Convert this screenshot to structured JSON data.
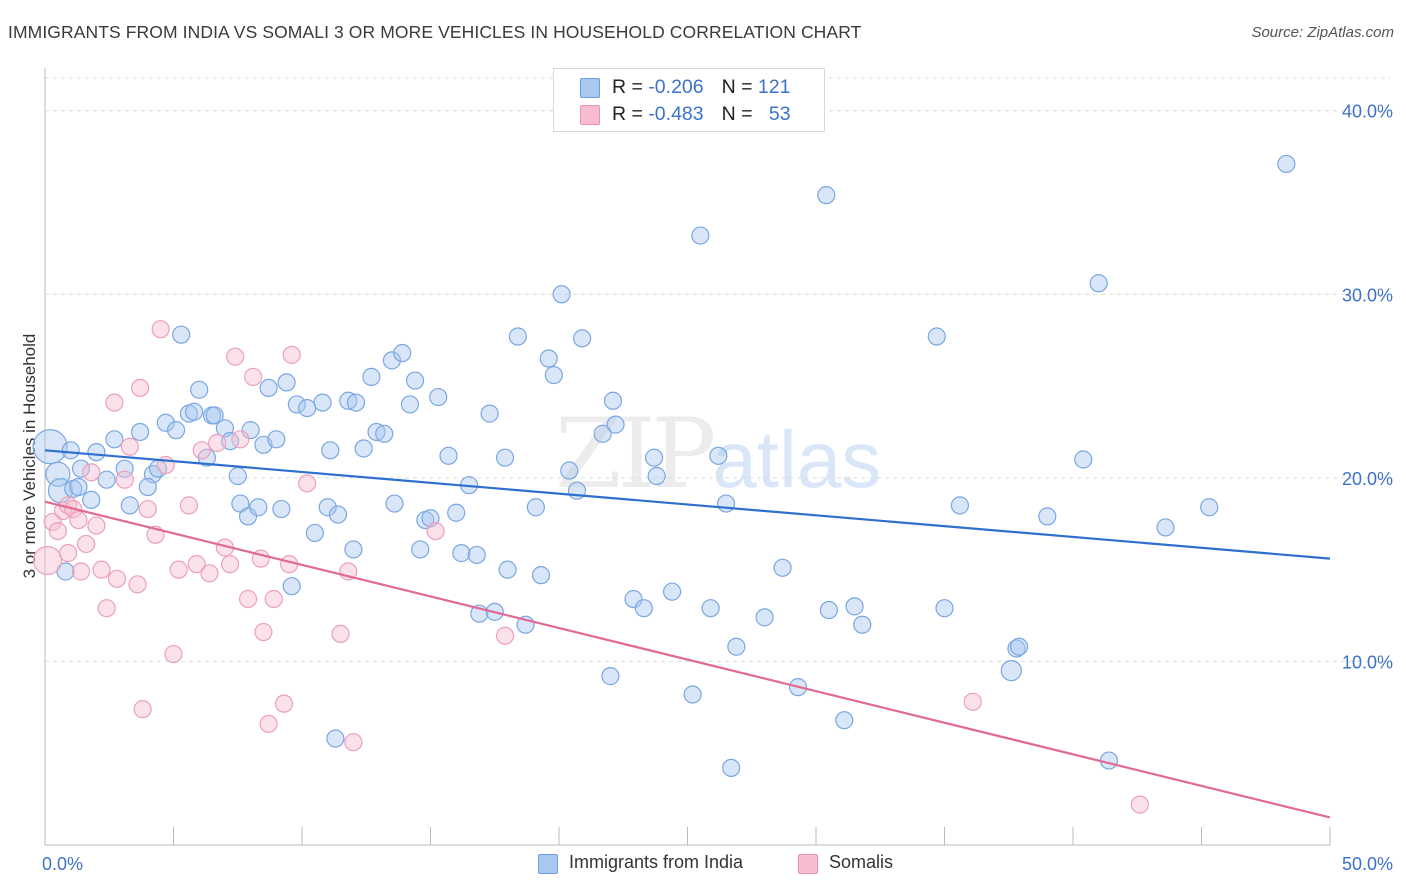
{
  "title": "IMMIGRANTS FROM INDIA VS SOMALI 3 OR MORE VEHICLES IN HOUSEHOLD CORRELATION CHART",
  "source": "Source: ZipAtlas.com",
  "watermark": {
    "zip": "ZIP",
    "atlas": "atlas"
  },
  "legend": {
    "rows": [
      {
        "r_label": "R = ",
        "r_value": "-0.206",
        "n_label": "N = ",
        "n_value": "121",
        "color": "#a9c8f0",
        "border": "#6d9ee0"
      },
      {
        "r_label": "R = ",
        "r_value": "-0.483",
        "n_label": "N = ",
        "n_value": "53",
        "color": "#f7bcd0",
        "border": "#e893b0"
      }
    ]
  },
  "bottom_legend": [
    {
      "label": "Immigrants from India",
      "color": "#a9c8f0",
      "border": "#6d9ee0"
    },
    {
      "label": "Somalis",
      "color": "#f7bcd0",
      "border": "#e893b0"
    }
  ],
  "chart_data": {
    "type": "scatter",
    "title": "IMMIGRANTS FROM INDIA VS SOMALI 3 OR MORE VEHICLES IN HOUSEHOLD CORRELATION CHART",
    "xlabel": "",
    "ylabel": "3 or more Vehicles in Household",
    "xlim": [
      0,
      50
    ],
    "ylim": [
      0,
      42
    ],
    "x_tick_labels": [
      "0.0%",
      "50.0%"
    ],
    "y_ticks": [
      10,
      20,
      30,
      40
    ],
    "y_tick_labels": [
      "10.0%",
      "20.0%",
      "30.0%",
      "40.0%"
    ],
    "grid": "horizontal dashed",
    "legend_position": "top-center",
    "colors": {
      "india": "#6d9ee0",
      "india_line": "#2f6fcf",
      "somali": "#e893b0",
      "somali_line": "#e06a93"
    },
    "series": [
      {
        "name": "Immigrants from India",
        "trend": {
          "x": [
            0,
            50
          ],
          "y": [
            21.5,
            15.6
          ]
        },
        "points": [
          [
            0.2,
            21.7
          ],
          [
            0.5,
            20.2
          ],
          [
            0.6,
            19.3
          ],
          [
            1.0,
            21.5
          ],
          [
            1.4,
            20.5
          ],
          [
            2.0,
            21.4
          ],
          [
            2.4,
            19.9
          ],
          [
            1.1,
            19.4
          ],
          [
            1.3,
            19.5
          ],
          [
            1.8,
            18.8
          ],
          [
            2.7,
            22.1
          ],
          [
            3.1,
            20.5
          ],
          [
            3.7,
            22.5
          ],
          [
            4.2,
            20.2
          ],
          [
            4.4,
            20.5
          ],
          [
            4.7,
            23.0
          ],
          [
            5.1,
            22.6
          ],
          [
            5.3,
            27.8
          ],
          [
            5.6,
            23.5
          ],
          [
            6.0,
            24.8
          ],
          [
            6.3,
            21.1
          ],
          [
            6.5,
            23.4
          ],
          [
            6.6,
            23.4
          ],
          [
            7.0,
            22.7
          ],
          [
            7.2,
            22.0
          ],
          [
            7.5,
            20.1
          ],
          [
            7.6,
            18.6
          ],
          [
            7.9,
            17.9
          ],
          [
            8.3,
            18.4
          ],
          [
            8.5,
            21.8
          ],
          [
            8.7,
            24.9
          ],
          [
            9.0,
            22.1
          ],
          [
            9.2,
            18.3
          ],
          [
            9.4,
            25.2
          ],
          [
            9.6,
            14.1
          ],
          [
            9.8,
            24.0
          ],
          [
            10.2,
            23.8
          ],
          [
            10.5,
            17.0
          ],
          [
            10.8,
            24.1
          ],
          [
            11.0,
            18.4
          ],
          [
            11.1,
            21.5
          ],
          [
            11.4,
            18.0
          ],
          [
            11.8,
            24.2
          ],
          [
            12.1,
            24.1
          ],
          [
            12.4,
            21.6
          ],
          [
            12.7,
            25.5
          ],
          [
            12.9,
            22.5
          ],
          [
            13.2,
            22.4
          ],
          [
            13.5,
            26.4
          ],
          [
            13.6,
            18.6
          ],
          [
            13.9,
            26.8
          ],
          [
            14.2,
            24.0
          ],
          [
            14.4,
            25.3
          ],
          [
            14.6,
            16.1
          ],
          [
            14.8,
            17.7
          ],
          [
            15.0,
            17.8
          ],
          [
            15.3,
            24.4
          ],
          [
            15.7,
            21.2
          ],
          [
            16.0,
            18.1
          ],
          [
            16.2,
            15.9
          ],
          [
            16.8,
            15.8
          ],
          [
            16.9,
            12.6
          ],
          [
            17.3,
            23.5
          ],
          [
            17.5,
            12.7
          ],
          [
            17.9,
            21.1
          ],
          [
            18.0,
            15.0
          ],
          [
            18.4,
            27.7
          ],
          [
            18.7,
            12.0
          ],
          [
            19.1,
            18.4
          ],
          [
            19.3,
            14.7
          ],
          [
            19.6,
            26.5
          ],
          [
            19.8,
            25.6
          ],
          [
            20.1,
            30.0
          ],
          [
            20.4,
            20.4
          ],
          [
            20.7,
            19.3
          ],
          [
            20.9,
            27.6
          ],
          [
            21.7,
            22.4
          ],
          [
            22.0,
            9.2
          ],
          [
            22.1,
            24.2
          ],
          [
            22.2,
            22.9
          ],
          [
            22.9,
            13.4
          ],
          [
            23.7,
            21.1
          ],
          [
            23.8,
            20.1
          ],
          [
            24.4,
            13.8
          ],
          [
            25.2,
            8.2
          ],
          [
            25.5,
            33.2
          ],
          [
            25.9,
            12.9
          ],
          [
            26.2,
            21.2
          ],
          [
            26.5,
            18.6
          ],
          [
            26.7,
            4.2
          ],
          [
            26.9,
            10.8
          ],
          [
            28.7,
            15.1
          ],
          [
            29.3,
            8.6
          ],
          [
            30.4,
            35.4
          ],
          [
            30.5,
            12.8
          ],
          [
            31.1,
            6.8
          ],
          [
            31.5,
            13.0
          ],
          [
            31.8,
            12.0
          ],
          [
            34.7,
            27.7
          ],
          [
            35.6,
            18.5
          ],
          [
            37.6,
            9.5
          ],
          [
            37.8,
            10.7
          ],
          [
            37.9,
            10.8
          ],
          [
            39.0,
            17.9
          ],
          [
            40.4,
            21.0
          ],
          [
            41.0,
            30.6
          ],
          [
            41.4,
            4.6
          ],
          [
            43.6,
            17.3
          ],
          [
            45.3,
            18.4
          ],
          [
            48.3,
            37.1
          ],
          [
            0.8,
            14.9
          ],
          [
            3.3,
            18.5
          ],
          [
            4.0,
            19.5
          ],
          [
            5.8,
            23.6
          ],
          [
            8.0,
            22.6
          ],
          [
            12.0,
            16.1
          ],
          [
            16.5,
            19.6
          ],
          [
            23.3,
            12.9
          ],
          [
            28.0,
            12.4
          ],
          [
            35.0,
            12.9
          ],
          [
            11.3,
            5.8
          ]
        ]
      },
      {
        "name": "Somalis",
        "trend": {
          "x": [
            0,
            50
          ],
          "y": [
            18.7,
            1.5
          ]
        },
        "points": [
          [
            0.1,
            15.5
          ],
          [
            0.3,
            17.6
          ],
          [
            0.5,
            17.1
          ],
          [
            0.7,
            18.2
          ],
          [
            0.9,
            18.5
          ],
          [
            1.1,
            18.3
          ],
          [
            1.3,
            17.7
          ],
          [
            1.4,
            14.9
          ],
          [
            1.6,
            16.4
          ],
          [
            1.8,
            20.3
          ],
          [
            2.0,
            17.4
          ],
          [
            2.2,
            15.0
          ],
          [
            2.4,
            12.9
          ],
          [
            2.7,
            24.1
          ],
          [
            2.8,
            14.5
          ],
          [
            3.1,
            19.9
          ],
          [
            3.3,
            21.7
          ],
          [
            3.6,
            14.2
          ],
          [
            3.7,
            24.9
          ],
          [
            3.8,
            7.4
          ],
          [
            4.0,
            18.3
          ],
          [
            4.3,
            16.9
          ],
          [
            4.5,
            28.1
          ],
          [
            4.7,
            20.7
          ],
          [
            5.0,
            10.4
          ],
          [
            5.2,
            15.0
          ],
          [
            5.6,
            18.5
          ],
          [
            5.9,
            15.3
          ],
          [
            6.1,
            21.5
          ],
          [
            6.4,
            14.8
          ],
          [
            6.7,
            21.9
          ],
          [
            7.2,
            15.3
          ],
          [
            7.4,
            26.6
          ],
          [
            7.6,
            22.1
          ],
          [
            7.9,
            13.4
          ],
          [
            8.1,
            25.5
          ],
          [
            8.4,
            15.6
          ],
          [
            8.5,
            11.6
          ],
          [
            8.7,
            6.6
          ],
          [
            8.9,
            13.4
          ],
          [
            9.3,
            7.7
          ],
          [
            9.5,
            15.3
          ],
          [
            9.6,
            26.7
          ],
          [
            10.2,
            19.7
          ],
          [
            11.5,
            11.5
          ],
          [
            11.8,
            14.9
          ],
          [
            12.0,
            5.6
          ],
          [
            15.2,
            17.1
          ],
          [
            17.9,
            11.4
          ],
          [
            36.1,
            7.8
          ],
          [
            42.6,
            2.2
          ],
          [
            0.9,
            15.9
          ],
          [
            7.0,
            16.2
          ]
        ]
      }
    ]
  }
}
